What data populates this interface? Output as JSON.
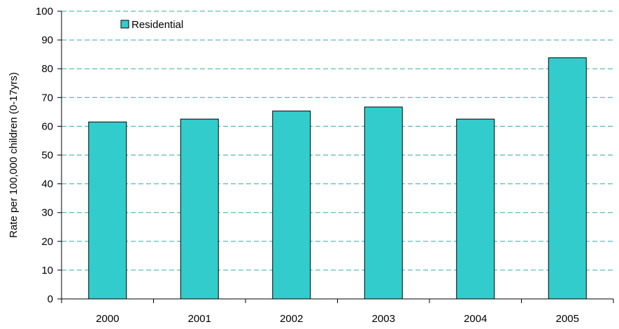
{
  "chart_data": {
    "type": "bar",
    "categories": [
      "2000",
      "2001",
      "2002",
      "2003",
      "2004",
      "2005"
    ],
    "series": [
      {
        "name": "Residential",
        "values": [
          61.5,
          62.5,
          65.3,
          66.7,
          62.5,
          83.8
        ]
      }
    ],
    "title": "",
    "xlabel": "",
    "ylabel": "Rate per 100,000 children (0-17yrs)",
    "ylim": [
      0,
      100
    ],
    "yticks": [
      0,
      10,
      20,
      30,
      40,
      50,
      60,
      70,
      80,
      90,
      100
    ],
    "grid": true,
    "legend_position": "top-left",
    "colors": {
      "bar": "#33cccc",
      "bar_stroke": "#000000",
      "grid": "#33aaaa",
      "axis": "#000000"
    }
  }
}
